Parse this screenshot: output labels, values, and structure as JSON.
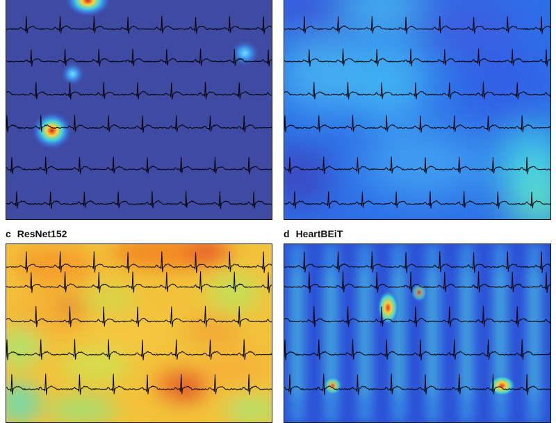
{
  "panels": [
    {
      "id": "a",
      "letter": "",
      "name": "",
      "heatmap_style": "sparse focal hotspots on deep blue background",
      "base_color": "#3f4aa3",
      "hotspots_description": "small hot regions (red/yellow centre) at top-middle, upper-right, mid-left and one on lead 4 near the left",
      "ecg_leads": 6
    },
    {
      "id": "b",
      "letter": "",
      "name": "",
      "heatmap_style": "smooth diffuse blue-cyan attention",
      "base_color": "#2d6fe8",
      "ecg_leads": 6
    },
    {
      "id": "c",
      "letter": "c",
      "name": "ResNet152",
      "heatmap_style": "broad warm yellow-orange attention with red patches",
      "base_color": "#f2c23a",
      "ecg_leads": 5
    },
    {
      "id": "d",
      "letter": "d",
      "name": "HeartBEiT",
      "heatmap_style": "blue background with cyan/yellow vertical bands aligned to QRS complexes",
      "base_color": "#2b4fd6",
      "ecg_leads": 5
    }
  ],
  "colors": {
    "trace": "#000000",
    "frame": "#111111",
    "jet_low": "#2b2f9e",
    "jet_mid": "#34c6e0",
    "jet_high": "#e83420"
  }
}
